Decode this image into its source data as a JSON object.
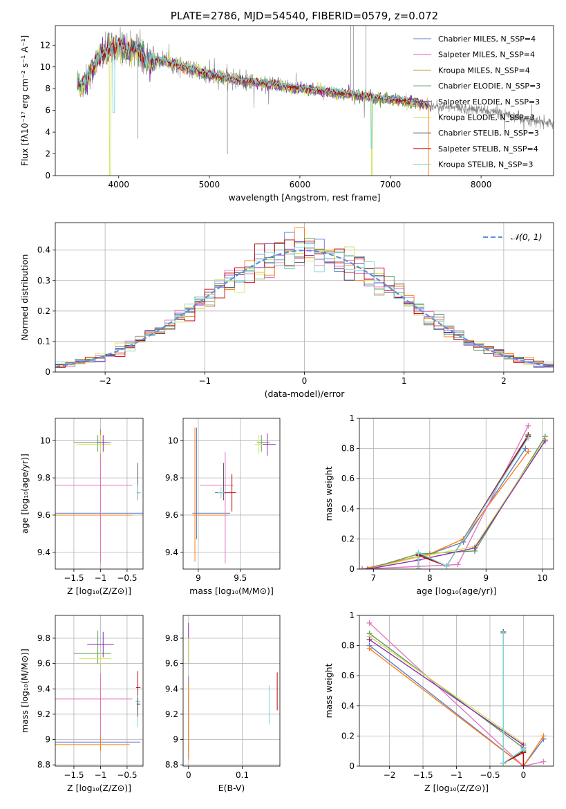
{
  "colors": {
    "chabrier_miles": "#5b7fcf",
    "salpeter_miles": "#e377c2",
    "kroupa_miles": "#c8912a",
    "chabrier_elodie": "#5a9a5a",
    "salpeter_elodie": "#8b2fb4",
    "kroupa_elodie": "#d4e157",
    "chabrier_stelib": "#555555",
    "salpeter_stelib": "#c00000",
    "kroupa_stelib": "#7fd4d6",
    "orange": "#ff7f0e",
    "data_gray": "#888888",
    "normal_curve": "#5b8fdd"
  },
  "chart_data": [
    {
      "id": "spectrum",
      "type": "line",
      "title": "PLATE=2786, MJD=54540, FIBERID=0579, z=0.072",
      "xlabel": "wavelength [Angstrom, rest frame]",
      "ylabel": "Flux [fλ10⁻¹⁷ erg cm⁻² s⁻¹ A⁻¹]",
      "xlim": [
        3300,
        8800
      ],
      "ylim": [
        0,
        13.8
      ],
      "xticks": [
        4000,
        5000,
        6000,
        7000,
        8000
      ],
      "yticks": [
        0,
        2,
        4,
        6,
        8,
        10,
        12
      ],
      "grid": false,
      "legend": "top-right",
      "legend_entries": [
        "Chabrier MILES, N_SSP=4",
        "Salpeter MILES, N_SSP=4",
        "Kroupa MILES, N_SSP=4",
        "Chabrier ELODIE, N_SSP=3",
        "Salpeter ELODIE, N_SSP=3",
        "Kroupa ELODIE, N_SSP=3",
        "Chabrier STELIB, N_SSP=3",
        "Salpeter STELIB, N_SSP=4",
        "Kroupa STELIB, N_SSP=3"
      ],
      "model_curve": {
        "x": [
          3540,
          3600,
          3700,
          3800,
          3900,
          4000,
          4100,
          4200,
          4300,
          4500,
          4700,
          4900,
          5100,
          5300,
          5500,
          5700,
          5900,
          6100,
          6300,
          6500,
          6700,
          6900,
          7100,
          7300,
          7420
        ],
        "y": [
          8.7,
          8.2,
          9.6,
          11.0,
          11.6,
          11.9,
          11.5,
          11.7,
          10.6,
          10.6,
          10.0,
          9.5,
          9.1,
          8.8,
          8.6,
          8.4,
          8.1,
          7.9,
          7.7,
          7.5,
          7.3,
          7.1,
          6.9,
          6.7,
          6.5
        ]
      },
      "data_curve_end": {
        "x": [
          7420,
          7600,
          7800,
          8000,
          8200,
          8400,
          8600,
          8800
        ],
        "y": [
          6.5,
          6.3,
          6.2,
          6.0,
          5.8,
          5.4,
          5.0,
          4.8
        ]
      }
    },
    {
      "id": "residuals",
      "type": "histogram",
      "xlabel": "(data-model)/error",
      "ylabel": "Normed distribution",
      "xlim": [
        -2.5,
        2.5
      ],
      "ylim": [
        0,
        0.49
      ],
      "xticks": [
        -2,
        -1,
        0,
        1,
        2
      ],
      "yticks": [
        0.0,
        0.1,
        0.2,
        0.3,
        0.4
      ],
      "grid": true,
      "legend": "top-right",
      "legend_entries": [
        "𝒩(0, 1)"
      ],
      "normal": {
        "mu": 0,
        "sigma": 1
      }
    },
    {
      "id": "age_vs_Z",
      "type": "errorbar",
      "xlabel": "Z [log₁₀(Z/Z⊙)]",
      "ylabel": "age  [log₁₀(age/yr)]",
      "xlim": [
        -1.85,
        -0.2
      ],
      "ylim": [
        9.31,
        10.12
      ],
      "xticks": [
        -1.5,
        -1.0,
        -0.5
      ],
      "yticks": [
        9.4,
        9.6,
        9.8,
        10.0
      ],
      "grid": true,
      "points": [
        {
          "x": -1.0,
          "y": 9.61,
          "xerr": [
            0.85,
            0.8
          ],
          "yerr": [
            0.14,
            0.45
          ],
          "c": "chabrier_miles"
        },
        {
          "x": -1.0,
          "y": 9.6,
          "xerr": [
            0.85,
            0.6
          ],
          "yerr": [
            0.25,
            0.45
          ],
          "c": "orange"
        },
        {
          "x": -1.0,
          "y": 9.76,
          "xerr": [
            0.85,
            0.6
          ],
          "yerr": [
            0.42,
            0.18
          ],
          "c": "salpeter_miles"
        },
        {
          "x": -1.05,
          "y": 9.99,
          "xerr": [
            0.45,
            0.25
          ],
          "yerr": [
            0.05,
            0.04
          ],
          "c": "chabrier_elodie"
        },
        {
          "x": -1.0,
          "y": 9.98,
          "xerr": [
            0.45,
            0.2
          ],
          "yerr": [
            0.05,
            0.05
          ],
          "c": "kroupa_elodie"
        },
        {
          "x": -0.95,
          "y": 9.99,
          "xerr": [
            0.1,
            0.1
          ],
          "yerr": [
            0.05,
            0.04
          ],
          "c": "salpeter_elodie"
        },
        {
          "x": -0.3,
          "y": 9.72,
          "xerr": [
            0.02,
            0.05
          ],
          "yerr": [
            0.04,
            0.16
          ],
          "c": "chabrier_stelib"
        },
        {
          "x": -0.3,
          "y": 9.72,
          "xerr": [
            0.02,
            0.05
          ],
          "yerr": [
            0.04,
            0.04
          ],
          "c": "kroupa_stelib"
        }
      ]
    },
    {
      "id": "age_vs_mass",
      "type": "errorbar",
      "xlabel": "mass [log₁₀(M/M⊙)]",
      "ylabel": "",
      "xlim": [
        8.82,
        9.97
      ],
      "ylim": [
        9.31,
        10.12
      ],
      "xticks": [
        9.0,
        9.5
      ],
      "yticks": [
        9.4,
        9.6,
        9.8,
        10.0
      ],
      "grid": true,
      "points": [
        {
          "x": 8.98,
          "y": 9.61,
          "xerr": [
            0.05,
            0.4
          ],
          "yerr": [
            0.14,
            0.46
          ],
          "c": "chabrier_miles"
        },
        {
          "x": 8.96,
          "y": 9.6,
          "xerr": [
            0.03,
            0.4
          ],
          "yerr": [
            0.25,
            0.47
          ],
          "c": "orange"
        },
        {
          "x": 9.32,
          "y": 9.76,
          "xerr": [
            0.3,
            0.1
          ],
          "yerr": [
            0.42,
            0.18
          ],
          "c": "salpeter_miles"
        },
        {
          "x": 9.4,
          "y": 9.72,
          "xerr": [
            0.1,
            0.05
          ],
          "yerr": [
            0.1,
            0.1
          ],
          "c": "salpeter_stelib"
        },
        {
          "x": 9.3,
          "y": 9.72,
          "xerr": [
            0.1,
            0.05
          ],
          "yerr": [
            0.04,
            0.16
          ],
          "c": "chabrier_stelib"
        },
        {
          "x": 9.27,
          "y": 9.72,
          "xerr": [
            0.04,
            0.04
          ],
          "yerr": [
            0.03,
            0.03
          ],
          "c": "kroupa_stelib"
        },
        {
          "x": 9.75,
          "y": 9.99,
          "xerr": [
            0.05,
            0.1
          ],
          "yerr": [
            0.05,
            0.04
          ],
          "c": "chabrier_elodie"
        },
        {
          "x": 9.72,
          "y": 9.98,
          "xerr": [
            0.05,
            0.1
          ],
          "yerr": [
            0.05,
            0.05
          ],
          "c": "kroupa_elodie"
        },
        {
          "x": 9.82,
          "y": 9.98,
          "xerr": [
            0.05,
            0.1
          ],
          "yerr": [
            0.06,
            0.06
          ],
          "c": "salpeter_elodie"
        }
      ]
    },
    {
      "id": "weight_vs_age",
      "type": "line",
      "xlabel": "age  [log₁₀(age/yr)]",
      "ylabel": "mass weight",
      "xlim": [
        6.75,
        10.2
      ],
      "ylim": [
        0,
        1.0
      ],
      "xticks": [
        7,
        8,
        9,
        10
      ],
      "yticks": [
        0.0,
        0.2,
        0.4,
        0.6,
        0.8,
        1.0
      ],
      "grid": true,
      "series": [
        {
          "c": "chabrier_miles",
          "x": [
            6.8,
            8.0,
            8.6,
            9.7
          ],
          "y": [
            0.0,
            0.1,
            0.18,
            0.8
          ]
        },
        {
          "c": "orange",
          "x": [
            6.8,
            8.0,
            8.6,
            9.75
          ],
          "y": [
            0.0,
            0.1,
            0.2,
            0.78
          ]
        },
        {
          "c": "salpeter_miles",
          "x": [
            6.8,
            8.5,
            9.75
          ],
          "y": [
            0.0,
            0.03,
            0.95
          ]
        },
        {
          "c": "chabrier_elodie",
          "x": [
            6.9,
            7.8,
            8.8,
            10.05
          ],
          "y": [
            0.0,
            0.1,
            0.12,
            0.88
          ]
        },
        {
          "c": "kroupa_elodie",
          "x": [
            6.9,
            7.8,
            8.8,
            10.05
          ],
          "y": [
            0.0,
            0.08,
            0.15,
            0.86
          ]
        },
        {
          "c": "salpeter_elodie",
          "x": [
            6.9,
            7.8,
            8.8,
            10.05
          ],
          "y": [
            0.0,
            0.06,
            0.14,
            0.85
          ]
        },
        {
          "c": "chabrier_stelib",
          "x": [
            7.8,
            7.8,
            8.3,
            9.75
          ],
          "y": [
            0.0,
            0.1,
            0.02,
            0.89
          ]
        },
        {
          "c": "salpeter_stelib",
          "x": [
            7.8,
            7.8,
            8.3,
            9.75
          ],
          "y": [
            0.0,
            0.09,
            0.02,
            0.88
          ]
        },
        {
          "c": "kroupa_stelib",
          "x": [
            7.8,
            7.8,
            8.3,
            9.75
          ],
          "y": [
            0.0,
            0.11,
            0.02,
            0.87
          ]
        }
      ]
    },
    {
      "id": "mass_vs_Z",
      "type": "errorbar",
      "xlabel": "Z [log₁₀(Z/Z⊙)]",
      "ylabel": "mass [log₁₀(M/M⊙)]",
      "xlim": [
        -1.85,
        -0.2
      ],
      "ylim": [
        8.79,
        9.98
      ],
      "xticks": [
        -1.5,
        -1.0,
        -0.5
      ],
      "yticks": [
        8.8,
        9.0,
        9.2,
        9.4,
        9.6,
        9.8
      ],
      "grid": true,
      "points": [
        {
          "x": -1.0,
          "y": 8.98,
          "xerr": [
            0.85,
            0.75
          ],
          "yerr": [
            0.05,
            0.5
          ],
          "c": "chabrier_miles"
        },
        {
          "x": -1.0,
          "y": 8.96,
          "xerr": [
            0.85,
            0.55
          ],
          "yerr": [
            0.05,
            0.5
          ],
          "c": "orange"
        },
        {
          "x": -1.0,
          "y": 9.32,
          "xerr": [
            0.85,
            0.6
          ],
          "yerr": [
            0.3,
            0.2
          ],
          "c": "salpeter_miles"
        },
        {
          "x": -1.05,
          "y": 9.68,
          "xerr": [
            0.45,
            0.25
          ],
          "yerr": [
            0.08,
            0.18
          ],
          "c": "chabrier_elodie"
        },
        {
          "x": -1.0,
          "y": 9.64,
          "xerr": [
            0.4,
            0.2
          ],
          "yerr": [
            0.05,
            0.05
          ],
          "c": "kroupa_elodie"
        },
        {
          "x": -0.95,
          "y": 9.75,
          "xerr": [
            0.3,
            0.2
          ],
          "yerr": [
            0.1,
            0.1
          ],
          "c": "salpeter_elodie"
        },
        {
          "x": -0.3,
          "y": 9.41,
          "xerr": [
            0.03,
            0.05
          ],
          "yerr": [
            0.18,
            0.13
          ],
          "c": "salpeter_stelib"
        },
        {
          "x": -0.3,
          "y": 9.3,
          "xerr": [
            0.04,
            0.05
          ],
          "yerr": [
            0.2,
            0.05
          ],
          "c": "kroupa_stelib"
        },
        {
          "x": -0.3,
          "y": 9.28,
          "xerr": [
            0.02,
            0.05
          ],
          "yerr": [
            0.1,
            0.05
          ],
          "c": "chabrier_stelib"
        }
      ]
    },
    {
      "id": "mass_vs_ebv",
      "type": "errorbar",
      "xlabel": "E(B-V)",
      "ylabel": "",
      "xlim": [
        -0.01,
        0.17
      ],
      "ylim": [
        8.79,
        9.98
      ],
      "xticks": [
        0.0,
        0.1
      ],
      "yticks": [
        8.8,
        9.0,
        9.2,
        9.4,
        9.6,
        9.8
      ],
      "grid": true,
      "points": [
        {
          "x": 0.0,
          "y": 9.0,
          "xerr": [
            0,
            0
          ],
          "yerr": [
            0.15,
            0.5
          ],
          "c": "chabrier_miles"
        },
        {
          "x": 0.0,
          "y": 8.96,
          "xerr": [
            0,
            0
          ],
          "yerr": [
            0.12,
            0.5
          ],
          "c": "orange"
        },
        {
          "x": 0.0,
          "y": 9.8,
          "xerr": [
            0,
            0
          ],
          "yerr": [
            0.2,
            0.12
          ],
          "c": "salpeter_elodie"
        },
        {
          "x": 0.0,
          "y": 9.7,
          "xerr": [
            0,
            0
          ],
          "yerr": [
            0.1,
            0.1
          ],
          "c": "kroupa_elodie"
        },
        {
          "x": 0.15,
          "y": 9.27,
          "xerr": [
            0,
            0
          ],
          "yerr": [
            0.15,
            0.16
          ],
          "c": "kroupa_stelib"
        },
        {
          "x": 0.165,
          "y": 9.38,
          "xerr": [
            0,
            0
          ],
          "yerr": [
            0.15,
            0.15
          ],
          "c": "salpeter_stelib"
        }
      ]
    },
    {
      "id": "weight_vs_Z",
      "type": "line",
      "xlabel": "Z [log₁₀(Z/Z⊙)]",
      "ylabel": "mass weight",
      "xlim": [
        -2.45,
        0.45
      ],
      "ylim": [
        0,
        1.0
      ],
      "xticks": [
        -2.0,
        -1.5,
        -1.0,
        -0.5,
        0.0
      ],
      "yticks": [
        0.0,
        0.2,
        0.4,
        0.6,
        0.8,
        1.0
      ],
      "grid": true,
      "series": [
        {
          "c": "chabrier_miles",
          "x": [
            -2.3,
            0.0,
            0.0,
            0.3
          ],
          "y": [
            0.8,
            0.0,
            0.0,
            0.18
          ]
        },
        {
          "c": "orange",
          "x": [
            -2.3,
            0.0,
            0.0,
            0.3
          ],
          "y": [
            0.78,
            0.0,
            0.0,
            0.2
          ]
        },
        {
          "c": "salpeter_miles",
          "x": [
            -2.3,
            0.0,
            0.3
          ],
          "y": [
            0.95,
            0.0,
            0.03
          ]
        },
        {
          "c": "chabrier_elodie",
          "x": [
            -2.3,
            0.0,
            0.0
          ],
          "y": [
            0.88,
            0.12,
            0.12
          ]
        },
        {
          "c": "kroupa_elodie",
          "x": [
            -2.3,
            0.0
          ],
          "y": [
            0.86,
            0.15
          ]
        },
        {
          "c": "salpeter_elodie",
          "x": [
            -2.3,
            0.0
          ],
          "y": [
            0.84,
            0.14
          ]
        },
        {
          "c": "chabrier_stelib",
          "x": [
            -0.3,
            -0.3,
            0.0,
            0.0
          ],
          "y": [
            0.89,
            0.02,
            0.1,
            0.0
          ]
        },
        {
          "c": "salpeter_stelib",
          "x": [
            -0.3,
            0.0,
            0.0
          ],
          "y": [
            0.02,
            0.09,
            0.0
          ]
        },
        {
          "c": "kroupa_stelib",
          "x": [
            -0.3,
            -0.3,
            0.0
          ],
          "y": [
            0.88,
            0.02,
            0.11
          ]
        }
      ]
    }
  ]
}
